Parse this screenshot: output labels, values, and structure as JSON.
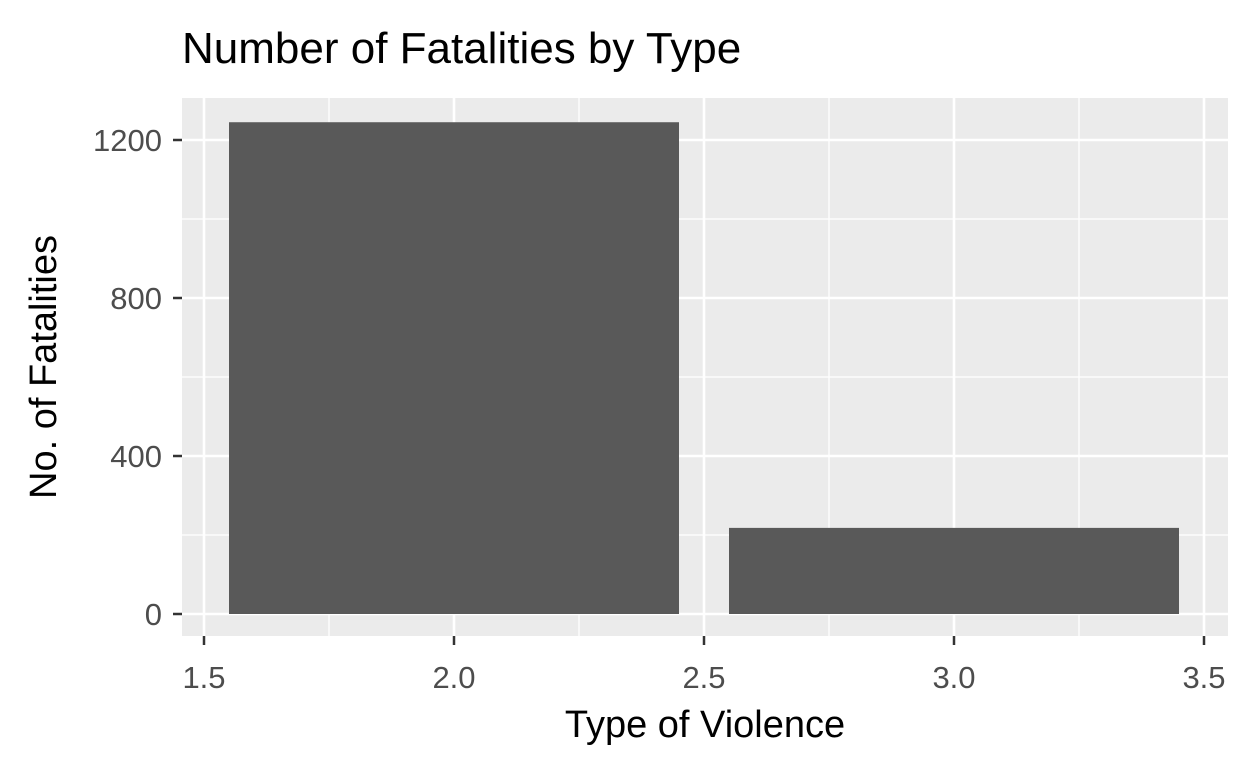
{
  "chart_data": {
    "type": "bar",
    "title": "Number of Fatalities by Type",
    "xlabel": "Type of Violence",
    "ylabel": "No. of Fatalities",
    "x": [
      2,
      3
    ],
    "values": [
      1245,
      218
    ],
    "bar_width": 0.9,
    "xlim": [
      1.5,
      3.5
    ],
    "ylim": [
      0,
      1245
    ],
    "xticks": [
      1.5,
      2.0,
      2.5,
      3.0,
      3.5
    ],
    "xtick_labels": [
      "1.5",
      "2.0",
      "2.5",
      "3.0",
      "3.5"
    ],
    "yticks": [
      0,
      400,
      800,
      1200
    ],
    "ytick_labels": [
      "0",
      "400",
      "800",
      "1200"
    ],
    "grid": true,
    "colors": {
      "bar": "#595959",
      "panel": "#ebebeb",
      "grid": "#ffffff",
      "tick": "#333333"
    }
  }
}
